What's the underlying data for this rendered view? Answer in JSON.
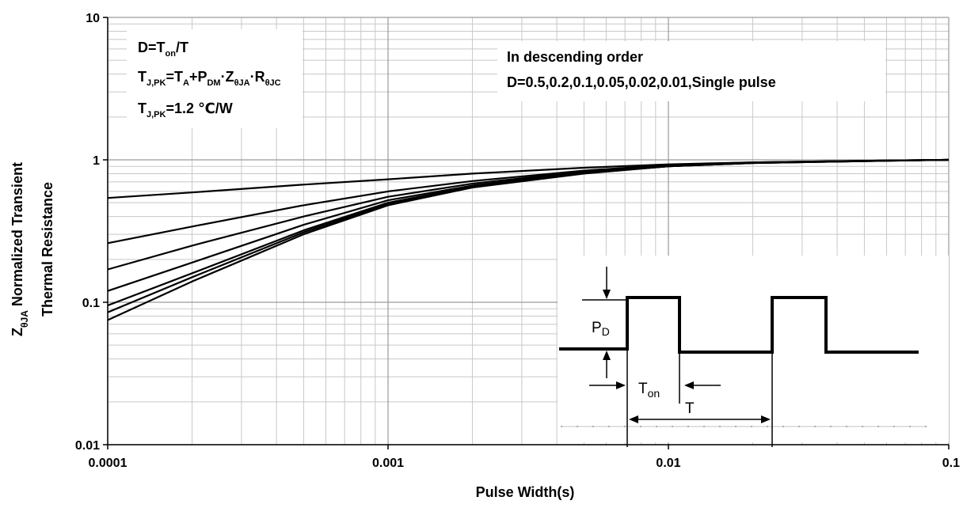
{
  "chart_data": {
    "type": "line",
    "title": "",
    "xlabel": "Pulse Width(s)",
    "ylabel_line1": "Normalized Transient",
    "ylabel_line1_symbol": {
      "base": "Z",
      "sub": "θJA"
    },
    "ylabel_line2": "Thermal Resistance",
    "x_scale": "log",
    "y_scale": "log",
    "xlim": [
      0.0001,
      0.1
    ],
    "ylim": [
      0.01,
      10
    ],
    "x_ticks": [
      "0.0001",
      "0.001",
      "0.01",
      "0.1"
    ],
    "y_ticks": [
      "0.01",
      "0.1",
      "1",
      "10"
    ],
    "grid": true,
    "series": [
      {
        "x": [
          0.0001,
          0.0002,
          0.0005,
          0.001,
          0.002,
          0.005,
          0.01,
          0.02,
          0.05,
          0.1
        ],
        "values": [
          0.54,
          0.59,
          0.67,
          0.73,
          0.8,
          0.88,
          0.93,
          0.96,
          0.985,
          1.0
        ]
      },
      {
        "x": [
          0.0001,
          0.0002,
          0.0005,
          0.001,
          0.002,
          0.005,
          0.01,
          0.02,
          0.05,
          0.1
        ],
        "values": [
          0.26,
          0.34,
          0.48,
          0.6,
          0.71,
          0.84,
          0.92,
          0.96,
          0.985,
          1.0
        ]
      },
      {
        "x": [
          0.0001,
          0.0002,
          0.0005,
          0.001,
          0.002,
          0.005,
          0.01,
          0.02,
          0.05,
          0.1
        ],
        "values": [
          0.17,
          0.25,
          0.4,
          0.55,
          0.68,
          0.83,
          0.91,
          0.955,
          0.985,
          1.0
        ]
      },
      {
        "x": [
          0.0001,
          0.0002,
          0.0005,
          0.001,
          0.002,
          0.005,
          0.01,
          0.02,
          0.05,
          0.1
        ],
        "values": [
          0.12,
          0.19,
          0.35,
          0.52,
          0.66,
          0.82,
          0.91,
          0.955,
          0.985,
          1.0
        ]
      },
      {
        "x": [
          0.0001,
          0.0002,
          0.0005,
          0.001,
          0.002,
          0.005,
          0.01,
          0.02,
          0.05,
          0.1
        ],
        "values": [
          0.095,
          0.16,
          0.32,
          0.5,
          0.65,
          0.81,
          0.9,
          0.95,
          0.98,
          1.0
        ]
      },
      {
        "x": [
          0.0001,
          0.0002,
          0.0005,
          0.001,
          0.002,
          0.005,
          0.01,
          0.02,
          0.05,
          0.1
        ],
        "values": [
          0.085,
          0.15,
          0.31,
          0.49,
          0.64,
          0.81,
          0.9,
          0.95,
          0.98,
          1.0
        ]
      },
      {
        "x": [
          0.0001,
          0.0002,
          0.0005,
          0.001,
          0.002,
          0.005,
          0.01,
          0.02,
          0.05,
          0.1
        ],
        "values": [
          0.075,
          0.14,
          0.3,
          0.48,
          0.64,
          0.8,
          0.9,
          0.95,
          0.98,
          1.0
        ]
      }
    ],
    "annotations": {
      "formulas": {
        "line1": {
          "a": "D=T",
          "a_sub": "on",
          "b": "/T"
        },
        "line2": {
          "a": "T",
          "a_sub": "J,PK",
          "b": "=T",
          "b_sub": "A",
          "c": "+P",
          "c_sub": "DM",
          "d": "·Z",
          "d_sub": "θJA",
          "e": "·R",
          "e_sub": "θJC"
        },
        "line3": {
          "a": "T",
          "a_sub": "J,PK",
          "b": "=1.2 ℃/W"
        }
      },
      "order_note": {
        "line1": "In descending order",
        "line2": "D=0.5,0.2,0.1,0.05,0.02,0.01,Single pulse"
      },
      "inset": {
        "pd_label": "P",
        "pd_sub": "D",
        "ton_label": "T",
        "ton_sub": "on",
        "t_label": "T"
      }
    }
  }
}
